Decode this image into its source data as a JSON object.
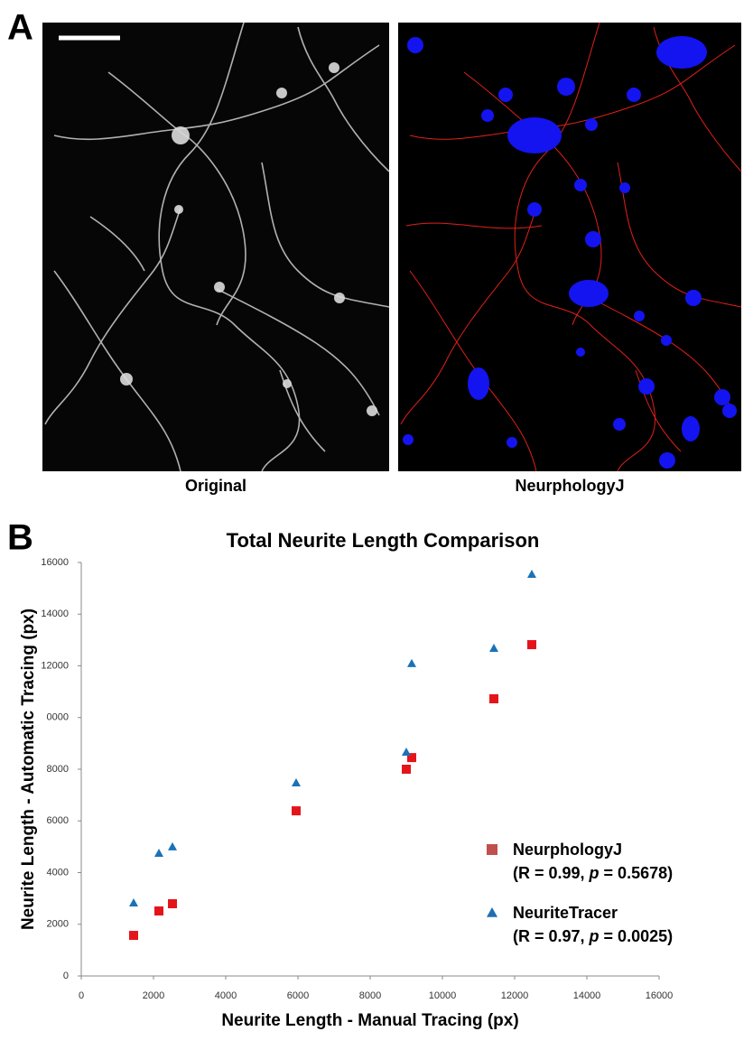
{
  "panels": {
    "a_label": "A",
    "b_label": "B"
  },
  "captions": [
    "Original",
    "NeurphologyJ"
  ],
  "chart_data": {
    "type": "scatter",
    "title": "Total Neurite Length Comparison",
    "xlabel": "Neurite Length - Manual Tracing (px)",
    "ylabel": "Neurite Length - Automatic Tracing (px)",
    "xlim": [
      0,
      16000
    ],
    "ylim": [
      0,
      16000
    ],
    "xticks": [
      0,
      2000,
      4000,
      6000,
      8000,
      10000,
      12000,
      14000,
      16000
    ],
    "yticks": [
      0,
      2000,
      4000,
      6000,
      8000,
      {
        "value": 10000,
        "label": "0000"
      },
      12000,
      14000,
      16000
    ],
    "legend": "lower right",
    "series": [
      {
        "name": "NeurphologyJ",
        "marker": "square",
        "color": "#e5141b",
        "legend_color": "#c0504d",
        "stats_parts": [
          "(R = 0.99, ",
          "p",
          " = 0.5678)"
        ],
        "x": [
          1450,
          2150,
          2525,
          5950,
          9000,
          9150,
          11425,
          12475
        ],
        "values": [
          1570,
          2515,
          2795,
          6390,
          8000,
          8450,
          10725,
          12820
        ]
      },
      {
        "name": "NeuriteTracer",
        "marker": "triangle",
        "color": "#1a72b8",
        "legend_color": "#1f6fb2",
        "stats_parts": [
          "(R = 0.97, ",
          "p",
          " = 0.0025)"
        ],
        "x": [
          1450,
          2150,
          2525,
          5950,
          9000,
          9150,
          11425,
          12475
        ],
        "values": [
          2830,
          4750,
          5000,
          7475,
          8665,
          12090,
          12680,
          15545
        ]
      }
    ]
  }
}
